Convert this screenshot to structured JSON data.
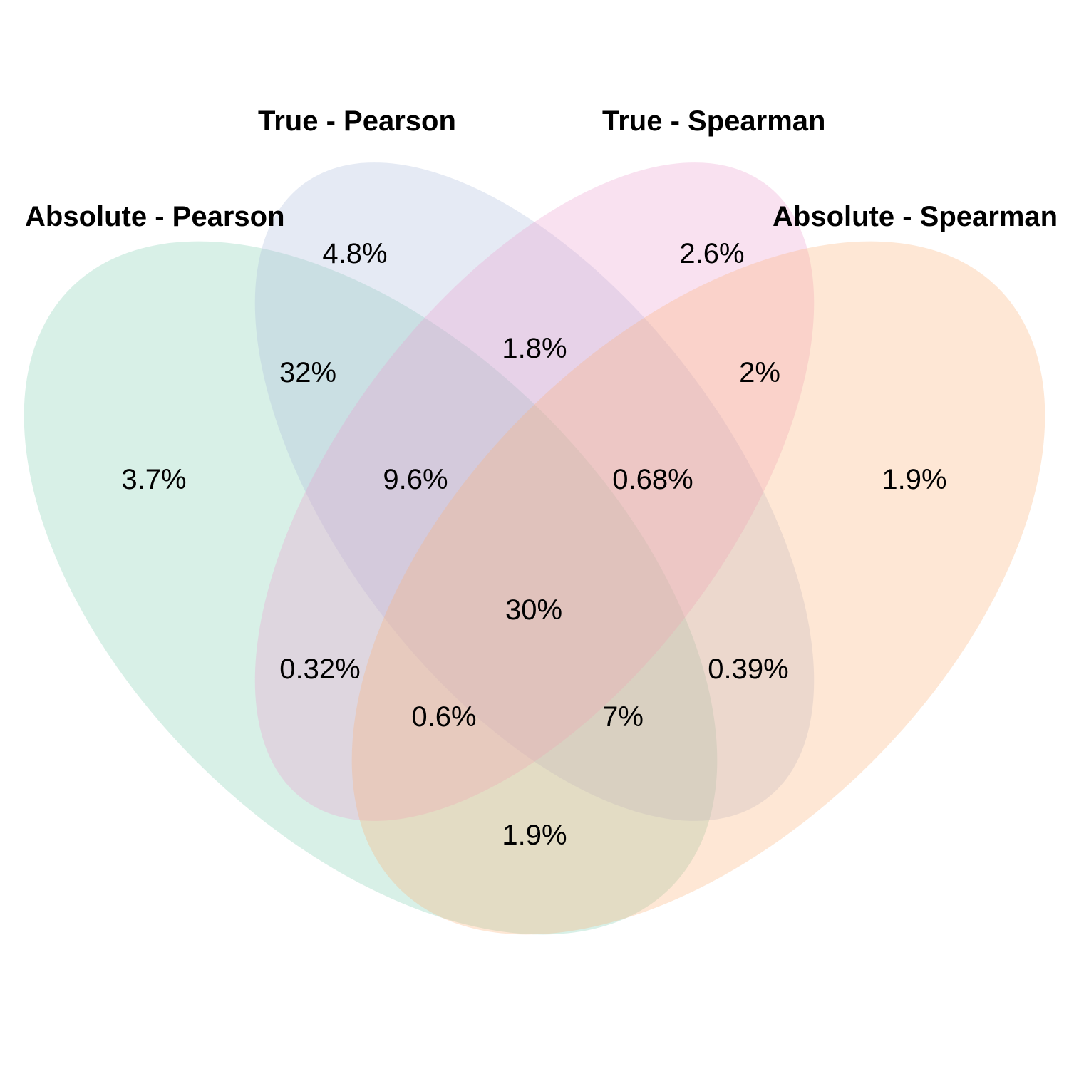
{
  "sets": [
    {
      "id": "abs-pearson",
      "name": "Absolute - Pearson",
      "color": "#7fcdaf"
    },
    {
      "id": "true-pearson",
      "name": "True - Pearson",
      "color": "#a9b9dc"
    },
    {
      "id": "true-spearman",
      "name": "True - Spearman",
      "color": "#ec9cce"
    },
    {
      "id": "abs-spearman",
      "name": "Absolute - Spearman",
      "color": "#fbae74"
    }
  ],
  "regions": [
    {
      "sets": [
        "true-pearson"
      ],
      "label": "4.8%"
    },
    {
      "sets": [
        "true-spearman"
      ],
      "label": "2.6%"
    },
    {
      "sets": [
        "true-pearson",
        "true-spearman"
      ],
      "label": "1.8%"
    },
    {
      "sets": [
        "abs-pearson",
        "true-pearson"
      ],
      "label": "32%"
    },
    {
      "sets": [
        "true-spearman",
        "abs-spearman"
      ],
      "label": "2%"
    },
    {
      "sets": [
        "abs-pearson"
      ],
      "label": "3.7%"
    },
    {
      "sets": [
        "abs-pearson",
        "true-pearson",
        "true-spearman"
      ],
      "label": "9.6%"
    },
    {
      "sets": [
        "true-pearson",
        "true-spearman",
        "abs-spearman"
      ],
      "label": "0.68%"
    },
    {
      "sets": [
        "abs-spearman"
      ],
      "label": "1.9%"
    },
    {
      "sets": [
        "abs-pearson",
        "true-pearson",
        "true-spearman",
        "abs-spearman"
      ],
      "label": "30%"
    },
    {
      "sets": [
        "abs-pearson",
        "true-spearman"
      ],
      "label": "0.32%"
    },
    {
      "sets": [
        "true-pearson",
        "abs-spearman"
      ],
      "label": "0.39%"
    },
    {
      "sets": [
        "abs-pearson",
        "true-spearman",
        "abs-spearman"
      ],
      "label": "0.6%"
    },
    {
      "sets": [
        "abs-pearson",
        "true-pearson",
        "abs-spearman"
      ],
      "label": "7%"
    },
    {
      "sets": [
        "abs-pearson",
        "abs-spearman"
      ],
      "label": "1.9%"
    }
  ]
}
